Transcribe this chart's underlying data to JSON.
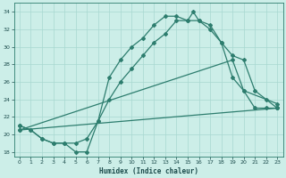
{
  "title": "",
  "xlabel": "Humidex (Indice chaleur)",
  "ylabel": "",
  "bg_color": "#cceee8",
  "line_color": "#2d7d6e",
  "grid_color": "#a8d8d0",
  "xlim": [
    -0.5,
    23.5
  ],
  "ylim": [
    17.5,
    35.0
  ],
  "xticks": [
    0,
    1,
    2,
    3,
    4,
    5,
    6,
    7,
    8,
    9,
    10,
    11,
    12,
    13,
    14,
    15,
    16,
    17,
    18,
    19,
    20,
    21,
    22,
    23
  ],
  "yticks": [
    18,
    20,
    22,
    24,
    26,
    28,
    30,
    32,
    34
  ],
  "line1_x": [
    0,
    1,
    2,
    3,
    4,
    5,
    6,
    7,
    8,
    9,
    10,
    11,
    12,
    13,
    14,
    15,
    15.5,
    16,
    17,
    18,
    19,
    20,
    21,
    22,
    23
  ],
  "line1_y": [
    21,
    20.5,
    19.5,
    19,
    19,
    18,
    18,
    21.5,
    26.5,
    28.5,
    30,
    31,
    32.5,
    33.5,
    33.5,
    33.0,
    34.0,
    33.0,
    32.5,
    30.5,
    26.5,
    25.0,
    23.0,
    23.0,
    23.0
  ],
  "line2_x": [
    0,
    1,
    2,
    3,
    4,
    5,
    6,
    7,
    8,
    9,
    10,
    11,
    12,
    13,
    14,
    15,
    16,
    17,
    18,
    19,
    20,
    21,
    22,
    23
  ],
  "line2_y": [
    21,
    20.5,
    19.5,
    19,
    19,
    19,
    19.5,
    21.5,
    24,
    26,
    27.5,
    29,
    30.5,
    31.5,
    33,
    33,
    33,
    32,
    30.5,
    29,
    28.5,
    25,
    24,
    23
  ],
  "line3_x": [
    0,
    23
  ],
  "line3_y": [
    20.5,
    23.0
  ],
  "line4_x": [
    0,
    19,
    20,
    23
  ],
  "line4_y": [
    20.5,
    28.5,
    25.0,
    23.5
  ]
}
